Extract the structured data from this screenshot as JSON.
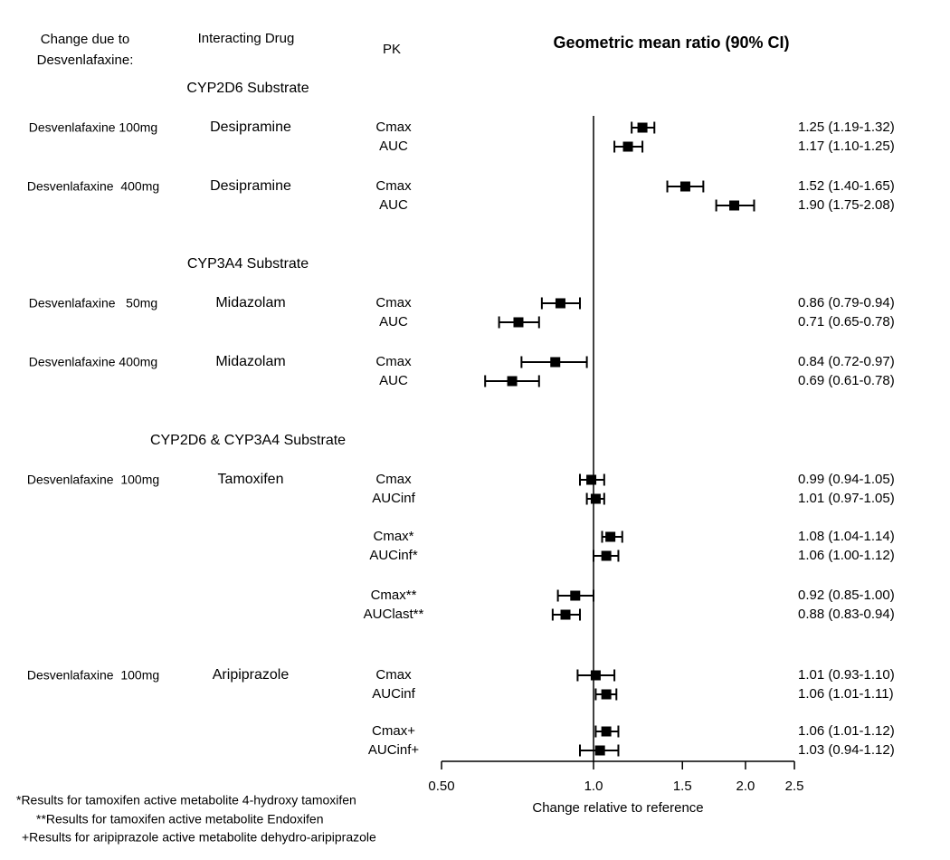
{
  "header": {
    "col1_line1": "Change due to",
    "col1_line2": "Desvenlafaxine:",
    "col2": "Interacting Drug",
    "col3": "PK",
    "title": "Geometric mean ratio (90% CI)"
  },
  "axis": {
    "label": "Change relative to reference",
    "scale": "log",
    "reference_value": 1.0,
    "tick_values": [
      0.5,
      1.0,
      1.5,
      2.0,
      2.5
    ],
    "tick_labels": [
      "0.50",
      "1.0",
      "1.5",
      "2.0",
      "2.5"
    ]
  },
  "footnotes": [
    "*Results for tamoxifen active metabolite 4-hydroxy tamoxifen",
    "**Results for tamoxifen active metabolite Endoxifen",
    "+Results for aripiprazole active metabolite dehydro-aripiprazole"
  ],
  "colors": {
    "marker": "#000000",
    "line": "#000000",
    "text": "#000000",
    "background": "#ffffff"
  },
  "chart_data": {
    "type": "forest",
    "title": "Geometric mean ratio (90% CI)",
    "xlabel": "Change relative to reference",
    "x_scale": "log",
    "x_ticks": [
      0.5,
      1.0,
      1.5,
      2.0,
      2.5
    ],
    "reference_line": 1.0,
    "sections": [
      {
        "heading": "CYP2D6 Substrate",
        "groups": [
          {
            "dose": "Desvenlafaxine 100mg",
            "drug": "Desipramine",
            "rows": [
              {
                "pk": "Cmax",
                "est": 1.25,
                "lo": 1.19,
                "hi": 1.32,
                "ci_text": "1.25 (1.19-1.32)"
              },
              {
                "pk": "AUC",
                "est": 1.17,
                "lo": 1.1,
                "hi": 1.25,
                "ci_text": "1.17 (1.10-1.25)"
              }
            ]
          },
          {
            "dose": "Desvenlafaxine  400mg",
            "drug": "Desipramine",
            "rows": [
              {
                "pk": "Cmax",
                "est": 1.52,
                "lo": 1.4,
                "hi": 1.65,
                "ci_text": "1.52 (1.40-1.65)"
              },
              {
                "pk": "AUC",
                "est": 1.9,
                "lo": 1.75,
                "hi": 2.08,
                "ci_text": "1.90 (1.75-2.08)"
              }
            ]
          }
        ]
      },
      {
        "heading": "CYP3A4 Substrate",
        "groups": [
          {
            "dose": "Desvenlafaxine   50mg",
            "drug": "Midazolam",
            "rows": [
              {
                "pk": "Cmax",
                "est": 0.86,
                "lo": 0.79,
                "hi": 0.94,
                "ci_text": "0.86 (0.79-0.94)"
              },
              {
                "pk": "AUC",
                "est": 0.71,
                "lo": 0.65,
                "hi": 0.78,
                "ci_text": "0.71 (0.65-0.78)"
              }
            ]
          },
          {
            "dose": "Desvenlafaxine 400mg",
            "drug": "Midazolam",
            "rows": [
              {
                "pk": "Cmax",
                "est": 0.84,
                "lo": 0.72,
                "hi": 0.97,
                "ci_text": "0.84 (0.72-0.97)"
              },
              {
                "pk": "AUC",
                "est": 0.69,
                "lo": 0.61,
                "hi": 0.78,
                "ci_text": "0.69 (0.61-0.78)"
              }
            ]
          }
        ]
      },
      {
        "heading": "CYP2D6 & CYP3A4 Substrate",
        "groups": [
          {
            "dose": "Desvenlafaxine  100mg",
            "drug": "Tamoxifen",
            "rows": [
              {
                "pk": "Cmax",
                "est": 0.99,
                "lo": 0.94,
                "hi": 1.05,
                "ci_text": "0.99 (0.94-1.05)"
              },
              {
                "pk": "AUCinf",
                "est": 1.01,
                "lo": 0.97,
                "hi": 1.05,
                "ci_text": "1.01 (0.97-1.05)"
              }
            ]
          },
          {
            "dose": "",
            "drug": "",
            "rows": [
              {
                "pk": "Cmax*",
                "est": 1.08,
                "lo": 1.04,
                "hi": 1.14,
                "ci_text": "1.08 (1.04-1.14)"
              },
              {
                "pk": "AUCinf*",
                "est": 1.06,
                "lo": 1.0,
                "hi": 1.12,
                "ci_text": "1.06 (1.00-1.12)"
              }
            ]
          },
          {
            "dose": "",
            "drug": "",
            "rows": [
              {
                "pk": "Cmax**",
                "est": 0.92,
                "lo": 0.85,
                "hi": 1.0,
                "ci_text": "0.92 (0.85-1.00)"
              },
              {
                "pk": "AUClast**",
                "est": 0.88,
                "lo": 0.83,
                "hi": 0.94,
                "ci_text": "0.88 (0.83-0.94)"
              }
            ]
          },
          {
            "dose": "Desvenlafaxine  100mg",
            "drug": "Aripiprazole",
            "rows": [
              {
                "pk": "Cmax",
                "est": 1.01,
                "lo": 0.93,
                "hi": 1.1,
                "ci_text": "1.01 (0.93-1.10)"
              },
              {
                "pk": "AUCinf",
                "est": 1.06,
                "lo": 1.01,
                "hi": 1.11,
                "ci_text": "1.06 (1.01-1.11)"
              }
            ]
          },
          {
            "dose": "",
            "drug": "",
            "rows": [
              {
                "pk": "Cmax+",
                "est": 1.06,
                "lo": 1.01,
                "hi": 1.12,
                "ci_text": "1.06 (1.01-1.12)"
              },
              {
                "pk": "AUCinf+",
                "est": 1.03,
                "lo": 0.94,
                "hi": 1.12,
                "ci_text": "1.03 (0.94-1.12)"
              }
            ]
          }
        ]
      }
    ]
  }
}
